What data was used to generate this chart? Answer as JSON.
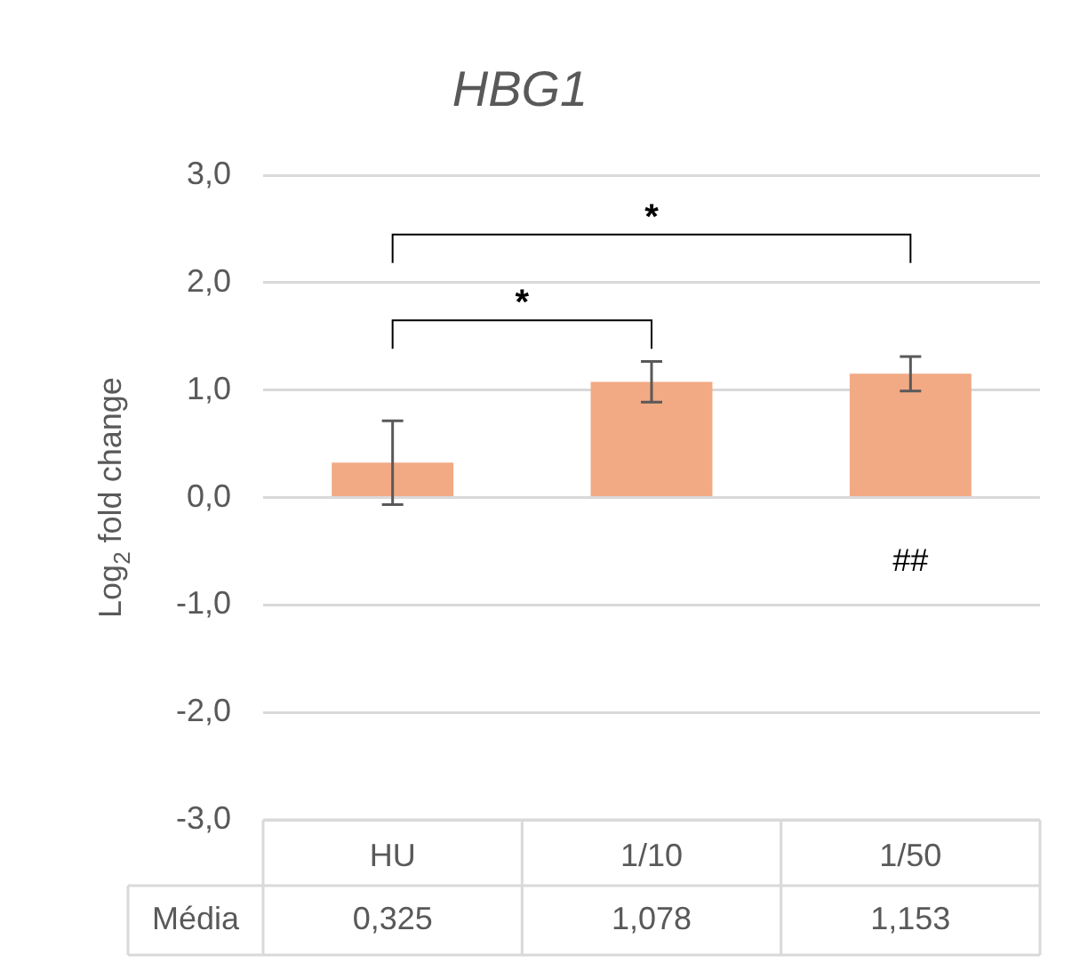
{
  "chart_data": {
    "type": "bar",
    "title": "HBG1",
    "ylabel": "Log$_{2}$ fold change",
    "categories": [
      "HU",
      "1/10",
      "1/50"
    ],
    "values": [
      0.325,
      1.078,
      1.153
    ],
    "errors": [
      0.39,
      0.19,
      0.16
    ],
    "value_labels": [
      "0,325",
      "1,078",
      "1,153"
    ],
    "color": "#f2aa84",
    "ylim": [
      -3,
      3
    ],
    "yticks": [
      {
        "value": -3,
        "label": "-3,0"
      },
      {
        "value": -2,
        "label": "-2,0"
      },
      {
        "value": -1,
        "label": "-1,0"
      },
      {
        "value": 0,
        "label": "0,0"
      },
      {
        "value": 1,
        "label": "1,0"
      },
      {
        "value": 2,
        "label": "2,0"
      },
      {
        "value": 3,
        "label": "3,0"
      }
    ],
    "grid": "y",
    "annotations": [
      "*",
      "*",
      "##",
      "Média"
    ]
  }
}
